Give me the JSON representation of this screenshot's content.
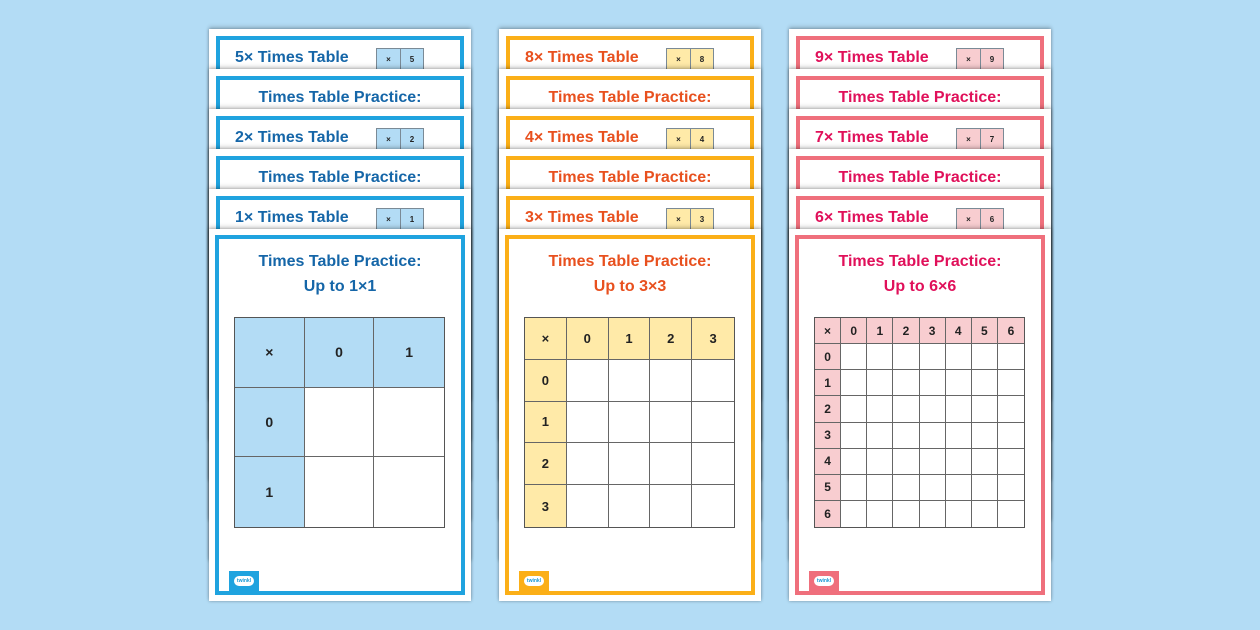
{
  "columns": [
    {
      "theme": "blue",
      "strips": [
        {
          "type": "table",
          "title": "5× Times Table",
          "badge": [
            "×",
            "5"
          ]
        },
        {
          "type": "practice",
          "title": "Times Table Practice:"
        },
        {
          "type": "table",
          "title": "2× Times Table",
          "badge": [
            "×",
            "2"
          ]
        },
        {
          "type": "practice",
          "title": "Times Table Practice:"
        },
        {
          "type": "table",
          "title": "1× Times Table",
          "badge": [
            "×",
            "1"
          ]
        }
      ],
      "main": {
        "title_line1": "Times Table Practice:",
        "title_line2": "Up to 1×1",
        "max": 1
      }
    },
    {
      "theme": "orange",
      "strips": [
        {
          "type": "table",
          "title": "8× Times Table",
          "badge": [
            "×",
            "8"
          ]
        },
        {
          "type": "practice",
          "title": "Times Table Practice:"
        },
        {
          "type": "table",
          "title": "4× Times Table",
          "badge": [
            "×",
            "4"
          ]
        },
        {
          "type": "practice",
          "title": "Times Table Practice:"
        },
        {
          "type": "table",
          "title": "3× Times Table",
          "badge": [
            "×",
            "3"
          ]
        }
      ],
      "main": {
        "title_line1": "Times Table Practice:",
        "title_line2": "Up to 3×3",
        "max": 3
      }
    },
    {
      "theme": "pink",
      "strips": [
        {
          "type": "table",
          "title": "9× Times Table",
          "badge": [
            "×",
            "9"
          ]
        },
        {
          "type": "practice",
          "title": "Times Table Practice:"
        },
        {
          "type": "table",
          "title": "7× Times Table",
          "badge": [
            "×",
            "7"
          ]
        },
        {
          "type": "practice",
          "title": "Times Table Practice:"
        },
        {
          "type": "table",
          "title": "6× Times Table",
          "badge": [
            "×",
            "6"
          ]
        }
      ],
      "main": {
        "title_line1": "Times Table Practice:",
        "title_line2": "Up to 6×6",
        "max": 6
      }
    }
  ],
  "corner_symbol": "×",
  "logo_text": "twinkl",
  "colors": {
    "background": "#b3dcf5",
    "blue_accent": "#1fa3df",
    "orange_accent": "#fbaf17",
    "pink_accent": "#ef6f7c"
  }
}
